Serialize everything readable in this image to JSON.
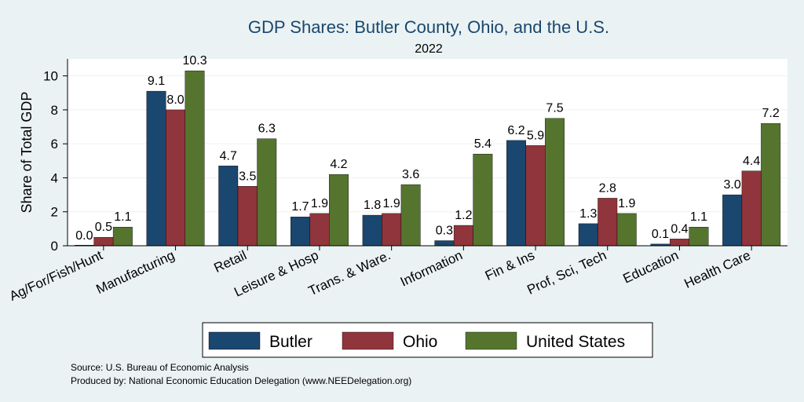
{
  "chart_data": {
    "type": "bar",
    "title": "GDP Shares: Butler County, Ohio, and the U.S.",
    "subtitle": "2022",
    "xlabel": "",
    "ylabel": "Share of Total GDP",
    "ylim": [
      0,
      11
    ],
    "yticks": [
      0,
      2,
      4,
      6,
      8,
      10
    ],
    "grid": true,
    "legend_position": "bottom",
    "categories": [
      "Ag/For/Fish/Hunt",
      "Manufacturing",
      "Retail",
      "Leisure & Hosp",
      "Trans. & Ware.",
      "Information",
      "Fin & Ins",
      "Prof, Sci, Tech",
      "Education",
      "Health Care"
    ],
    "series": [
      {
        "name": "Butler",
        "color": "#1a476f",
        "values": [
          0.0,
          9.1,
          4.7,
          1.7,
          1.8,
          0.3,
          6.2,
          1.3,
          0.1,
          3.0
        ],
        "labels": [
          "0.0",
          "9.1",
          "4.7",
          "1.7",
          "1.8",
          "0.3",
          "6.2",
          "1.3",
          "0.1",
          "3.0"
        ]
      },
      {
        "name": "Ohio",
        "color": "#90353b",
        "values": [
          0.5,
          8.0,
          3.5,
          1.9,
          1.9,
          1.2,
          5.9,
          2.8,
          0.4,
          4.4
        ],
        "labels": [
          "0.5",
          "8.0",
          "3.5",
          "1.9",
          "1.9",
          "1.2",
          "5.9",
          "2.8",
          "0.4",
          "4.4"
        ]
      },
      {
        "name": "United States",
        "color": "#55752f",
        "values": [
          1.1,
          10.3,
          6.3,
          4.2,
          3.6,
          5.4,
          7.5,
          1.9,
          1.1,
          7.2
        ],
        "labels": [
          "1.1",
          "10.3",
          "6.3",
          "4.2",
          "3.6",
          "5.4",
          "7.5",
          "1.9",
          "1.1",
          "7.2"
        ]
      }
    ],
    "notes": [
      "Source: U.S. Bureau of Economic Analysis",
      "Produced by: National Economic Education Delegation (www.NEEDelegation.org)"
    ]
  },
  "colors": {
    "background": "#eaf2f3",
    "plot_background": "#ffffff",
    "gridline": "#eaf2f3"
  }
}
